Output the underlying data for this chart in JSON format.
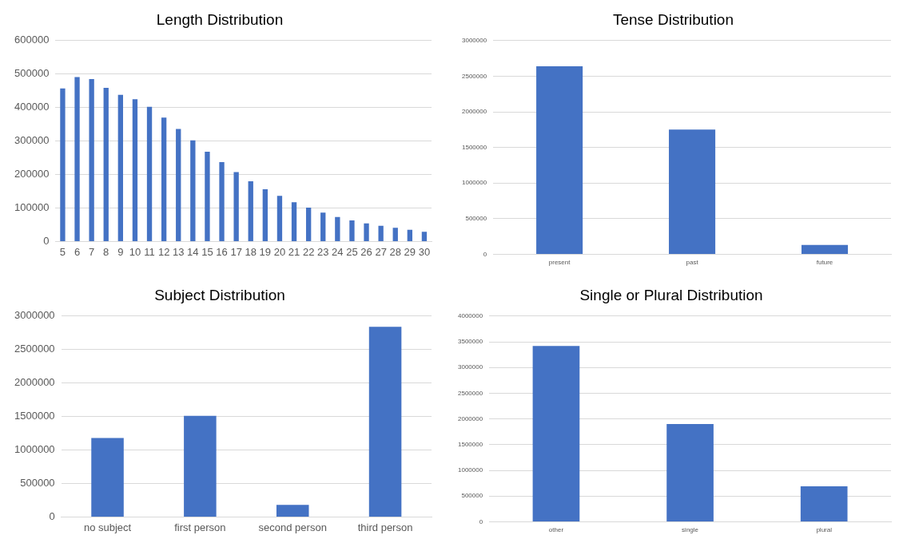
{
  "chart_data": [
    {
      "type": "bar",
      "title": "Length Distribution",
      "categories": [
        "5",
        "6",
        "7",
        "8",
        "9",
        "10",
        "11",
        "12",
        "13",
        "14",
        "15",
        "16",
        "17",
        "18",
        "19",
        "20",
        "21",
        "22",
        "23",
        "24",
        "25",
        "26",
        "27",
        "28",
        "29",
        "30"
      ],
      "values": [
        457000,
        491000,
        485000,
        459000,
        438000,
        425000,
        402000,
        370000,
        336000,
        302000,
        268000,
        237000,
        207000,
        180000,
        156000,
        136000,
        117000,
        101000,
        86000,
        73000,
        63000,
        54000,
        47000,
        41000,
        35000,
        29000
      ],
      "color": "#4472c4",
      "ylim": [
        0,
        600000
      ],
      "yticks": [
        0,
        100000,
        200000,
        300000,
        400000,
        500000,
        600000
      ],
      "grid": "y"
    },
    {
      "type": "bar",
      "title": "Tense Distribution",
      "categories": [
        "present",
        "past",
        "future"
      ],
      "values": [
        2640000,
        1750000,
        130000
      ],
      "color": "#4472c4",
      "ylim": [
        0,
        3000000
      ],
      "yticks": [
        0,
        500000,
        1000000,
        1500000,
        2000000,
        2500000,
        3000000
      ],
      "grid": "y"
    },
    {
      "type": "bar",
      "title": "Subject Distribution",
      "categories": [
        "no subject",
        "first person",
        "second person",
        "third person"
      ],
      "values": [
        1180000,
        1510000,
        180000,
        2840000
      ],
      "color": "#4472c4",
      "ylim": [
        0,
        3000000
      ],
      "yticks": [
        0,
        500000,
        1000000,
        1500000,
        2000000,
        2500000,
        3000000
      ],
      "grid": "y"
    },
    {
      "type": "bar",
      "title": "Single or Plural Distribution",
      "categories": [
        "other",
        "single",
        "plural"
      ],
      "values": [
        3420000,
        1900000,
        690000
      ],
      "color": "#4472c4",
      "ylim": [
        0,
        4000000
      ],
      "yticks": [
        0,
        500000,
        1000000,
        1500000,
        2000000,
        2500000,
        3000000,
        3500000,
        4000000
      ],
      "grid": "y"
    }
  ]
}
